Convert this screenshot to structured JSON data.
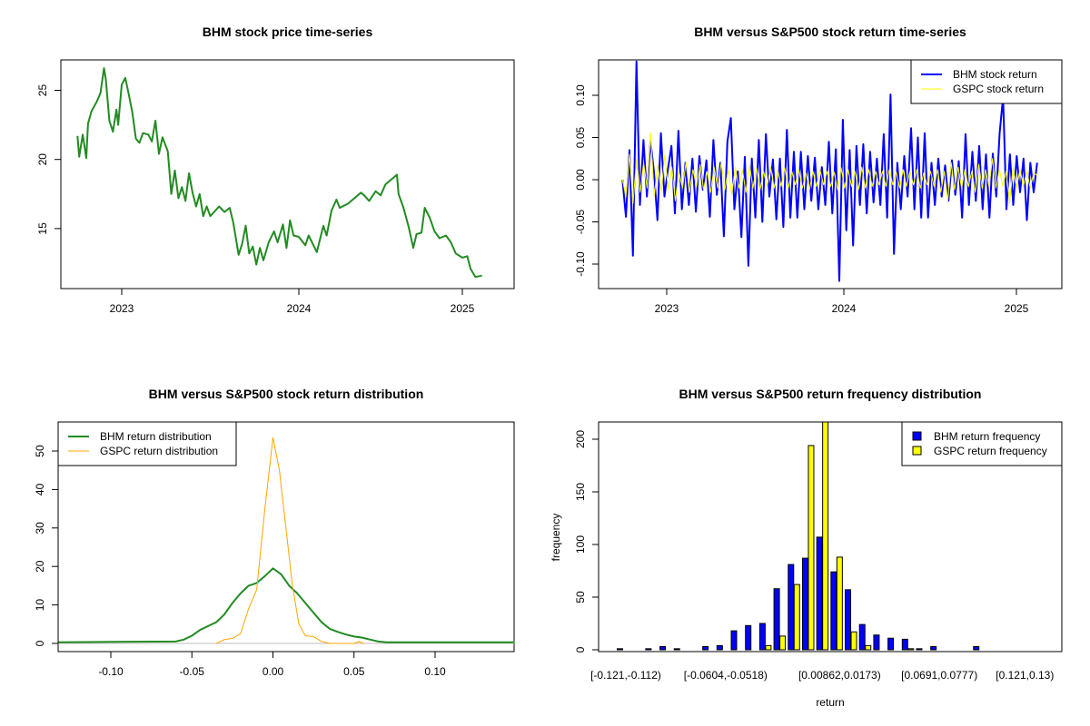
{
  "colors": {
    "price": "#228B22",
    "bhm_return": "#0000FF",
    "gspc_return": "#FFFF00",
    "bhm_density": "#228B22",
    "gspc_density": "#FFA500",
    "zero_line": "#BEBEBE"
  },
  "chart_data": [
    {
      "id": "price",
      "type": "line",
      "title": "BHM stock price time-series",
      "xlabel": "",
      "ylabel": "",
      "xticks": [
        {
          "v": 2023,
          "label": "2023"
        },
        {
          "v": 2024,
          "label": "2024"
        },
        {
          "v": 2025,
          "label": "2025"
        }
      ],
      "yticks": [
        {
          "v": 15,
          "label": "15"
        },
        {
          "v": 20,
          "label": "20"
        },
        {
          "v": 25,
          "label": "25"
        }
      ],
      "ylim": [
        10.66,
        27.2
      ],
      "series": [
        {
          "name": "BHM price",
          "points": [
            [
              2022.75,
              21.7
            ],
            [
              2022.76,
              20.2
            ],
            [
              2022.78,
              21.8
            ],
            [
              2022.8,
              20.1
            ],
            [
              2022.81,
              22.6
            ],
            [
              2022.83,
              23.5
            ],
            [
              2022.86,
              24.2
            ],
            [
              2022.88,
              24.8
            ],
            [
              2022.9,
              26.6
            ],
            [
              2022.91,
              25.8
            ],
            [
              2022.93,
              22.8
            ],
            [
              2022.95,
              22.0
            ],
            [
              2022.97,
              23.6
            ],
            [
              2022.98,
              22.5
            ],
            [
              2023.0,
              25.4
            ],
            [
              2023.02,
              25.9
            ],
            [
              2023.04,
              24.7
            ],
            [
              2023.06,
              23.4
            ],
            [
              2023.08,
              21.5
            ],
            [
              2023.1,
              21.2
            ],
            [
              2023.12,
              21.9
            ],
            [
              2023.15,
              21.8
            ],
            [
              2023.17,
              21.3
            ],
            [
              2023.19,
              22.8
            ],
            [
              2023.21,
              20.4
            ],
            [
              2023.23,
              21.6
            ],
            [
              2023.26,
              20.6
            ],
            [
              2023.28,
              17.5
            ],
            [
              2023.3,
              19.2
            ],
            [
              2023.32,
              17.2
            ],
            [
              2023.34,
              18.0
            ],
            [
              2023.36,
              17.0
            ],
            [
              2023.38,
              19.0
            ],
            [
              2023.4,
              17.6
            ],
            [
              2023.42,
              16.6
            ],
            [
              2023.44,
              17.5
            ],
            [
              2023.46,
              15.9
            ],
            [
              2023.48,
              16.6
            ],
            [
              2023.5,
              15.9
            ],
            [
              2023.55,
              16.6
            ],
            [
              2023.58,
              16.2
            ],
            [
              2023.61,
              16.5
            ],
            [
              2023.63,
              15.4
            ],
            [
              2023.66,
              13.1
            ],
            [
              2023.68,
              13.9
            ],
            [
              2023.7,
              15.2
            ],
            [
              2023.72,
              13.2
            ],
            [
              2023.74,
              13.7
            ],
            [
              2023.76,
              12.4
            ],
            [
              2023.78,
              13.6
            ],
            [
              2023.8,
              12.7
            ],
            [
              2023.83,
              14.0
            ],
            [
              2023.86,
              14.8
            ],
            [
              2023.88,
              14.0
            ],
            [
              2023.91,
              15.3
            ],
            [
              2023.93,
              13.6
            ],
            [
              2023.95,
              15.6
            ],
            [
              2023.97,
              14.5
            ],
            [
              2024.0,
              14.4
            ],
            [
              2024.04,
              13.8
            ],
            [
              2024.06,
              14.5
            ],
            [
              2024.11,
              13.3
            ],
            [
              2024.15,
              15.2
            ],
            [
              2024.17,
              14.5
            ],
            [
              2024.2,
              16.3
            ],
            [
              2024.23,
              17.1
            ],
            [
              2024.25,
              16.5
            ],
            [
              2024.3,
              16.8
            ],
            [
              2024.34,
              17.2
            ],
            [
              2024.38,
              17.6
            ],
            [
              2024.4,
              17.4
            ],
            [
              2024.43,
              17.0
            ],
            [
              2024.47,
              17.7
            ],
            [
              2024.5,
              17.4
            ],
            [
              2024.53,
              18.2
            ],
            [
              2024.56,
              18.5
            ],
            [
              2024.6,
              18.9
            ],
            [
              2024.61,
              17.5
            ],
            [
              2024.64,
              16.5
            ],
            [
              2024.67,
              15.2
            ],
            [
              2024.7,
              13.6
            ],
            [
              2024.72,
              14.6
            ],
            [
              2024.75,
              14.7
            ],
            [
              2024.77,
              16.5
            ],
            [
              2024.8,
              15.8
            ],
            [
              2024.83,
              14.8
            ],
            [
              2024.86,
              14.3
            ],
            [
              2024.9,
              14.5
            ],
            [
              2024.93,
              14.0
            ],
            [
              2024.96,
              13.2
            ],
            [
              2025.0,
              12.9
            ],
            [
              2025.03,
              13.0
            ],
            [
              2025.05,
              12.1
            ],
            [
              2025.08,
              11.5
            ],
            [
              2025.12,
              11.6
            ]
          ]
        }
      ]
    },
    {
      "id": "returns",
      "type": "line",
      "title": "BHM versus S&P500 stock return time-series",
      "xlabel": "",
      "ylabel": "",
      "xrange": [
        2022.75,
        2025.12
      ],
      "xticks": [
        {
          "v": 2023,
          "label": "2023"
        },
        {
          "v": 2024,
          "label": "2024"
        },
        {
          "v": 2025,
          "label": "2025"
        }
      ],
      "yticks": [
        {
          "v": -0.1,
          "label": "-0.10"
        },
        {
          "v": -0.05,
          "label": "-0.05"
        },
        {
          "v": 0,
          "label": "0.00"
        },
        {
          "v": 0.05,
          "label": "0.05"
        },
        {
          "v": 0.1,
          "label": "0.10"
        }
      ],
      "legend": {
        "position": "top-right",
        "entries": [
          "BHM stock return",
          "GSPC stock return"
        ]
      },
      "series": [
        {
          "name": "BHM stock return",
          "values": [
            0,
            -0.044,
            0.035,
            -0.09,
            0.14,
            -0.03,
            0.047,
            -0.02,
            0.046,
            0.01,
            -0.048,
            0.055,
            -0.02,
            0.012,
            0.04,
            -0.04,
            0.058,
            -0.035,
            0.02,
            -0.03,
            0.025,
            -0.038,
            0.028,
            -0.012,
            0.023,
            -0.044,
            0.047,
            -0.018,
            0.02,
            -0.067,
            0.045,
            0.073,
            -0.035,
            0.01,
            -0.068,
            0.027,
            -0.102,
            0.025,
            -0.045,
            0.047,
            -0.05,
            0.054,
            -0.02,
            0.024,
            -0.047,
            0.025,
            -0.056,
            0.059,
            -0.045,
            0.033,
            -0.045,
            0.033,
            -0.035,
            0.028,
            -0.025,
            0.026,
            -0.035,
            0.015,
            -0.03,
            0.045,
            -0.04,
            0.036,
            -0.12,
            0.071,
            -0.06,
            0.035,
            -0.078,
            0.04,
            -0.03,
            0.042,
            -0.04,
            0.033,
            -0.027,
            0.025,
            -0.03,
            0.054,
            -0.045,
            0.101,
            -0.088,
            0.02,
            -0.035,
            0.028,
            -0.02,
            0.061,
            -0.035,
            0.05,
            -0.045,
            0.055,
            -0.045,
            0.02,
            -0.03,
            0.025,
            -0.02,
            0.017,
            -0.025,
            0.023,
            -0.018,
            0.022,
            -0.045,
            0.054,
            -0.03,
            0.033,
            -0.025,
            0.04,
            -0.035,
            0.03,
            -0.045,
            0.031,
            -0.02,
            0.055,
            0.098,
            -0.035,
            0.03,
            -0.03,
            0.028,
            -0.015,
            0.025,
            -0.048,
            0.02,
            -0.015,
            0.02
          ]
        },
        {
          "name": "GSPC stock return",
          "values": [
            0,
            -0.02,
            0.03,
            -0.028,
            0.025,
            -0.015,
            0.02,
            -0.01,
            0.055,
            -0.02,
            0.018,
            -0.015,
            0.03,
            -0.012,
            0.015,
            -0.025,
            0.01,
            -0.01,
            0.02,
            -0.015,
            0.012,
            -0.008,
            0.018,
            -0.012,
            0.01,
            -0.015,
            0.015,
            -0.01,
            0.02,
            -0.012,
            0.012,
            -0.018,
            0.015,
            -0.01,
            0.012,
            -0.015,
            0.018,
            -0.01,
            0.014,
            -0.012,
            0.01,
            -0.008,
            0.015,
            -0.01,
            0.012,
            -0.008,
            0.014,
            -0.01,
            0.01,
            -0.006,
            0.012,
            -0.01,
            0.008,
            -0.012,
            0.01,
            -0.008,
            0.012,
            -0.006,
            0.01,
            -0.008,
            0.009,
            -0.012,
            0.014,
            -0.01,
            0.012,
            -0.008,
            0.01,
            -0.012,
            0.015,
            -0.01,
            0.012,
            -0.008,
            0.01,
            -0.006,
            0.01,
            -0.008,
            0.012,
            -0.006,
            0.009,
            -0.01,
            0.012,
            -0.008,
            0.01,
            -0.006,
            0.012,
            -0.01,
            0.008,
            -0.006,
            0.01,
            -0.008,
            0.012,
            -0.015,
            0.01,
            -0.025,
            0.02,
            -0.012,
            0.015,
            -0.01,
            0.012,
            -0.008,
            0.01,
            -0.015,
            0.018,
            -0.01,
            0.012,
            -0.008,
            0.025,
            -0.01,
            0.012,
            -0.008,
            0.01,
            -0.028,
            0.015,
            -0.01,
            0.012,
            -0.008,
            0.01,
            -0.01,
            0.008,
            0.005
          ]
        }
      ]
    },
    {
      "id": "density",
      "type": "line",
      "title": "BHM versus S&P500 stock return distribution",
      "xlabel": "",
      "ylabel": "",
      "xlim": [
        -0.1325,
        0.149
      ],
      "xticks": [
        {
          "v": -0.1,
          "label": "-0.10"
        },
        {
          "v": -0.05,
          "label": "-0.05"
        },
        {
          "v": 0,
          "label": "0.00"
        },
        {
          "v": 0.05,
          "label": "0.05"
        },
        {
          "v": 0.1,
          "label": "0.10"
        }
      ],
      "yticks": [
        {
          "v": 0,
          "label": "0"
        },
        {
          "v": 10,
          "label": "10"
        },
        {
          "v": 20,
          "label": "20"
        },
        {
          "v": 30,
          "label": "30"
        },
        {
          "v": 40,
          "label": "40"
        },
        {
          "v": 50,
          "label": "50"
        }
      ],
      "legend": {
        "position": "top-left",
        "entries": [
          "BHM return distribution",
          "GSPC return distribution"
        ]
      },
      "series": [
        {
          "name": "BHM return distribution",
          "x": [
            -0.1325,
            -0.06,
            -0.055,
            -0.05,
            -0.045,
            -0.04,
            -0.035,
            -0.03,
            -0.025,
            -0.02,
            -0.015,
            -0.01,
            -0.005,
            0,
            0.005,
            0.01,
            0.015,
            0.02,
            0.025,
            0.03,
            0.035,
            0.04,
            0.045,
            0.05,
            0.055,
            0.06,
            0.065,
            0.07,
            0.149
          ],
          "y": [
            0.3,
            0.5,
            1,
            2,
            3.5,
            4.5,
            5.5,
            7.5,
            10.5,
            13,
            15,
            15.7,
            17.5,
            19.5,
            18,
            15,
            13,
            10.5,
            8,
            5.5,
            3.8,
            3,
            2.3,
            1.8,
            1.5,
            1,
            0.5,
            0.3,
            0.3
          ]
        },
        {
          "name": "GSPC return distribution",
          "x": [
            -0.035,
            -0.03,
            -0.025,
            -0.02,
            -0.015,
            -0.012,
            -0.01,
            -0.005,
            0,
            0.004,
            0.008,
            0.012,
            0.016,
            0.02,
            0.025,
            0.03,
            0.035,
            0.05,
            0.053,
            0.056
          ],
          "y": [
            0,
            1,
            1.3,
            2.5,
            9,
            12,
            14,
            35,
            53.5,
            45,
            30,
            15,
            5,
            2,
            1.8,
            0.5,
            0,
            0,
            0.5,
            0
          ]
        }
      ]
    },
    {
      "id": "histogram",
      "type": "bar",
      "title": "BHM versus S&P500 return frequency distribution",
      "xlabel": "return",
      "ylabel": "frequency",
      "ylim": [
        0,
        216
      ],
      "bin_count": 30,
      "xtick_labels": [
        {
          "bin": 1,
          "label": "[-0.121,-0.112)"
        },
        {
          "bin": 8,
          "label": "[-0.0604,-0.0518)"
        },
        {
          "bin": 16,
          "label": "[0.00862,0.0173)"
        },
        {
          "bin": 23,
          "label": "[0.0691,0.0777)"
        },
        {
          "bin": 29,
          "label": "[0.121,0.13)"
        }
      ],
      "yticks": [
        {
          "v": 0,
          "label": "0"
        },
        {
          "v": 50,
          "label": "50"
        },
        {
          "v": 100,
          "label": "100"
        },
        {
          "v": 150,
          "label": "150"
        },
        {
          "v": 200,
          "label": "200"
        }
      ],
      "legend": {
        "position": "top-right",
        "entries": [
          "BHM return frequency",
          "GSPC return frequency"
        ]
      },
      "series": [
        {
          "name": "BHM return frequency",
          "values": [
            1,
            0,
            1,
            3,
            1,
            0,
            3,
            4,
            18,
            23,
            25,
            58,
            81,
            87,
            107,
            74,
            57,
            24,
            14,
            11,
            10,
            1,
            3,
            0,
            0,
            3,
            0,
            0,
            0,
            0
          ]
        },
        {
          "name": "GSPC return frequency",
          "values": [
            0,
            0,
            0,
            0,
            0,
            0,
            0,
            0,
            0,
            0,
            4,
            13,
            62,
            194,
            226,
            88,
            17,
            4,
            0,
            0,
            1,
            0,
            0,
            0,
            0,
            0,
            0,
            0,
            0,
            0
          ]
        }
      ]
    }
  ]
}
